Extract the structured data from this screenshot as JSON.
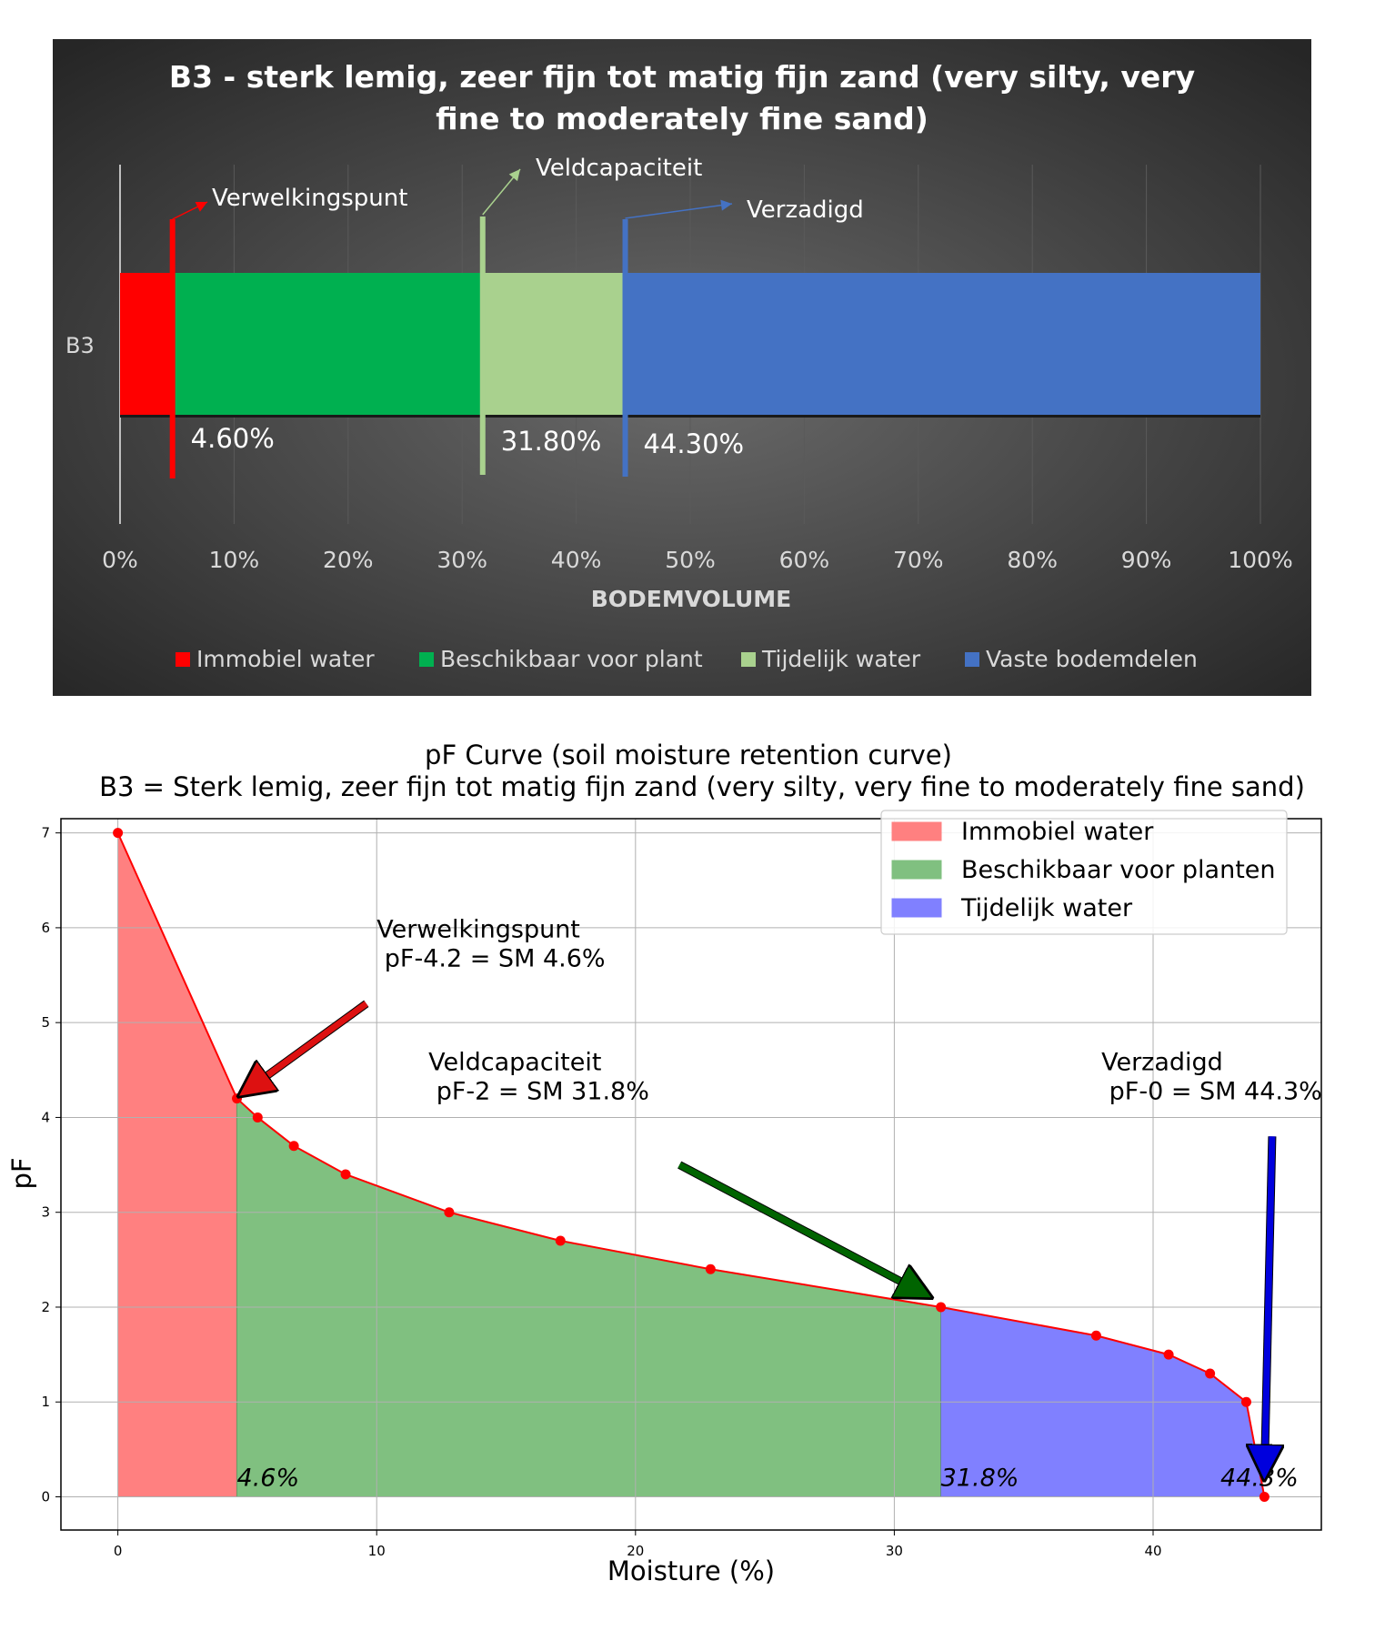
{
  "chart_data": [
    {
      "type": "bar",
      "orientation": "horizontal",
      "stacked": true,
      "title": "B3 - sterk lemig, zeer fijn tot matig fijn zand (very silty, very fine to moderately fine sand)",
      "title_lines": [
        "B3 - sterk lemig, zeer fijn tot matig fijn zand (very silty, very",
        "fine to moderately fine sand)"
      ],
      "categories": [
        "B3"
      ],
      "xlabel": "BODEMVOLUME",
      "xlim": [
        0,
        100
      ],
      "x_ticks": [
        "0%",
        "10%",
        "20%",
        "30%",
        "40%",
        "50%",
        "60%",
        "70%",
        "80%",
        "90%",
        "100%"
      ],
      "series": [
        {
          "name": "Immobiel water",
          "values": [
            4.6
          ],
          "color": "#ff0000"
        },
        {
          "name": "Beschikbaar voor plant",
          "values": [
            27.2
          ],
          "color": "#00b050"
        },
        {
          "name": "Tijdelijk water",
          "values": [
            12.5
          ],
          "color": "#a9d18e"
        },
        {
          "name": "Vaste bodemdelen",
          "values": [
            55.7
          ],
          "color": "#4472c4"
        }
      ],
      "markers": [
        {
          "label": "Verwelkingspunt",
          "x": 4.6,
          "value_label": "4.60%",
          "color": "#ff0000"
        },
        {
          "label": "Veldcapaciteit",
          "x": 31.8,
          "value_label": "31.80%",
          "color": "#a9d18e"
        },
        {
          "label": "Verzadigd",
          "x": 44.3,
          "value_label": "44.30%",
          "color": "#4472c4"
        }
      ],
      "legend_position": "bottom",
      "background": "#404040"
    },
    {
      "type": "line",
      "title_lines": [
        "pF Curve (soil moisture retention curve)",
        "B3 = Sterk lemig, zeer fijn tot matig fijn zand (very silty, very fine to moderately fine sand)"
      ],
      "xlabel": "Moisture (%)",
      "ylabel": "pF",
      "xlim": [
        -2.2,
        46.5
      ],
      "ylim": [
        -0.35,
        7.15
      ],
      "x_ticks": [
        0,
        10,
        20,
        30,
        40
      ],
      "y_ticks": [
        0,
        1,
        2,
        3,
        4,
        5,
        6,
        7
      ],
      "grid": true,
      "line_color": "#ff0000",
      "points": [
        {
          "x": 0,
          "y": 7
        },
        {
          "x": 4.6,
          "y": 4.2
        },
        {
          "x": 5.4,
          "y": 4.0
        },
        {
          "x": 6.8,
          "y": 3.7
        },
        {
          "x": 8.8,
          "y": 3.4
        },
        {
          "x": 12.8,
          "y": 3.0
        },
        {
          "x": 17.1,
          "y": 2.7
        },
        {
          "x": 22.9,
          "y": 2.4
        },
        {
          "x": 31.8,
          "y": 2.0
        },
        {
          "x": 37.8,
          "y": 1.7
        },
        {
          "x": 40.6,
          "y": 1.5
        },
        {
          "x": 42.2,
          "y": 1.3
        },
        {
          "x": 43.6,
          "y": 1.0
        },
        {
          "x": 44.3,
          "y": 0.0
        }
      ],
      "regions": [
        {
          "name": "Immobiel water",
          "from": 0,
          "to": 4.6,
          "color": "#ff8080"
        },
        {
          "name": "Beschikbaar voor planten",
          "from": 4.6,
          "to": 31.8,
          "color": "#80c080"
        },
        {
          "name": "Tijdelijk water",
          "from": 31.8,
          "to": 44.3,
          "color": "#8080ff"
        }
      ],
      "region_labels": [
        {
          "text": "4.6%",
          "x": 4.6
        },
        {
          "text": "31.8%",
          "x": 31.8
        },
        {
          "text": "44.3%",
          "x": 42.6
        }
      ],
      "annotations": [
        {
          "lines": [
            "Verwelkingspunt",
            " pF-4.2 = SM 4.6%"
          ],
          "text_x": 10,
          "text_y": 5.9,
          "arrow_from": [
            9.6,
            5.2
          ],
          "arrow_to": [
            4.8,
            4.25
          ],
          "arrow_color": "#dd1111"
        },
        {
          "lines": [
            "Veldcapaciteit",
            " pF-2 = SM 31.8%"
          ],
          "text_x": 12.0,
          "text_y": 4.5,
          "arrow_from": [
            21.7,
            3.5
          ],
          "arrow_to": [
            31.3,
            2.12
          ],
          "arrow_color": "#006400"
        },
        {
          "lines": [
            "Verzadigd",
            " pF-0 = SM 44.3%"
          ],
          "text_x": 38.0,
          "text_y": 4.5,
          "arrow_from": [
            44.6,
            3.8
          ],
          "arrow_to": [
            44.3,
            0.22
          ],
          "arrow_color": "#0000dd"
        }
      ],
      "legend_position": "top-right"
    }
  ]
}
